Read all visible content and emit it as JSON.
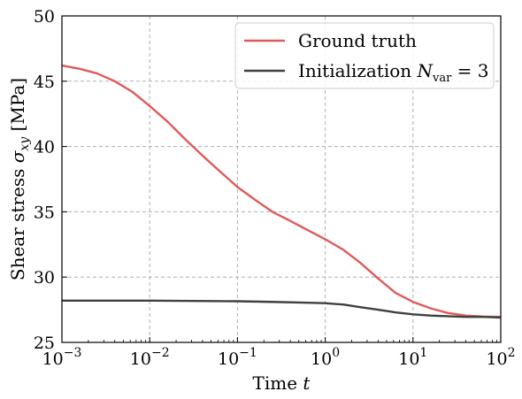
{
  "chart_data": {
    "type": "line",
    "xlabel": "Time t",
    "ylabel": "Shear stress σ_xy [MPa]",
    "xscale": "log",
    "xlim": [
      0.001,
      100
    ],
    "ylim": [
      25,
      50
    ],
    "xticks": [
      {
        "value": 0.001,
        "base": "10",
        "exp": "−3"
      },
      {
        "value": 0.01,
        "base": "10",
        "exp": "−2"
      },
      {
        "value": 0.1,
        "base": "10",
        "exp": "−1"
      },
      {
        "value": 1,
        "base": "10",
        "exp": "0"
      },
      {
        "value": 10,
        "base": "10",
        "exp": "1"
      },
      {
        "value": 100,
        "base": "10",
        "exp": "2"
      }
    ],
    "yticks": [
      25,
      30,
      35,
      40,
      45,
      50
    ],
    "grid": true,
    "legend_position": "top-right",
    "series": [
      {
        "name": "Ground truth",
        "color": "#e05a5a",
        "x": [
          0.001,
          0.0016,
          0.0025,
          0.004,
          0.0063,
          0.01,
          0.016,
          0.025,
          0.04,
          0.063,
          0.1,
          0.16,
          0.25,
          0.4,
          0.63,
          1,
          1.6,
          2.5,
          4,
          6.3,
          10,
          16,
          25,
          40,
          63,
          100
        ],
        "y": [
          46.2,
          45.95,
          45.6,
          45.0,
          44.2,
          43.1,
          41.9,
          40.6,
          39.3,
          38.1,
          36.9,
          35.9,
          35.0,
          34.3,
          33.6,
          32.9,
          32.1,
          31.1,
          29.9,
          28.8,
          28.1,
          27.6,
          27.25,
          27.05,
          26.98,
          26.95
        ]
      },
      {
        "name": "Initialization N_var = 3",
        "color": "#404040",
        "x": [
          0.001,
          0.01,
          0.1,
          0.25,
          0.5,
          1,
          1.6,
          2.5,
          4,
          6.3,
          10,
          16,
          25,
          40,
          63,
          100
        ],
        "y": [
          28.2,
          28.2,
          28.15,
          28.1,
          28.05,
          28.0,
          27.9,
          27.7,
          27.5,
          27.3,
          27.15,
          27.05,
          27.0,
          26.95,
          26.95,
          26.9
        ]
      }
    ]
  }
}
